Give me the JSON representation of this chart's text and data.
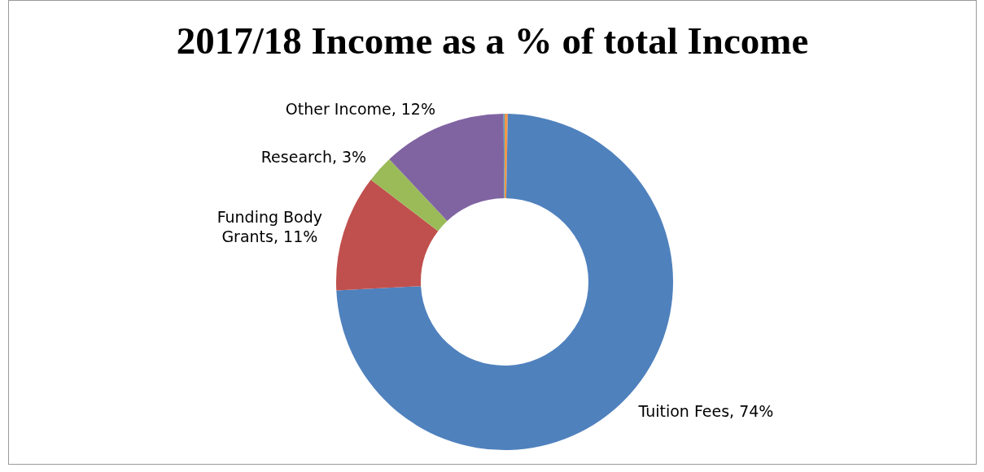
{
  "chart_data": {
    "type": "donut",
    "title": "2017/18 Income as a % of total Income",
    "categories": [
      null,
      "Tuition Fees",
      "Funding Body Grants",
      "Research",
      "Other Income",
      null
    ],
    "values": [
      0.3,
      73.9,
      11.2,
      2.6,
      11.9,
      0.1
    ],
    "value_labels": [
      null,
      "74%",
      "11%",
      "3%",
      "12%",
      null
    ],
    "colors": [
      "#f79646",
      "#4f81bd",
      "#c0504d",
      "#9bbb59",
      "#8064a2",
      "#4bacc6"
    ]
  }
}
